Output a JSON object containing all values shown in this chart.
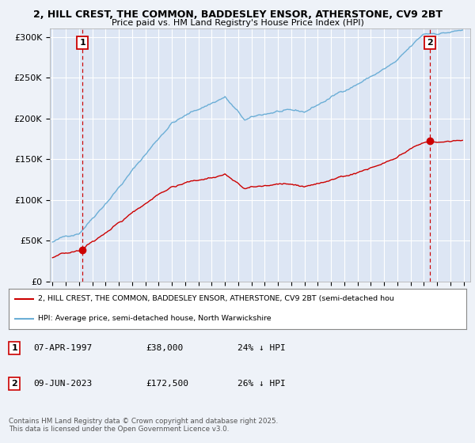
{
  "title_line1": "2, HILL CREST, THE COMMON, BADDESLEY ENSOR, ATHERSTONE, CV9 2BT",
  "title_line2": "Price paid vs. HM Land Registry's House Price Index (HPI)",
  "background_color": "#eef2f8",
  "plot_bg_color": "#dde6f4",
  "grid_color": "#ffffff",
  "hpi_color": "#6baed6",
  "price_color": "#cc0000",
  "hpi_color_fill": "#c5d8ef",
  "sale1_x": 1997.27,
  "sale1_y": 38000,
  "sale2_x": 2023.44,
  "sale2_y": 172500,
  "legend1_text": "2, HILL CREST, THE COMMON, BADDESLEY ENSOR, ATHERSTONE, CV9 2BT (semi-detached hou",
  "legend2_text": "HPI: Average price, semi-detached house, North Warwickshire",
  "footer": "Contains HM Land Registry data © Crown copyright and database right 2025.\nThis data is licensed under the Open Government Licence v3.0.",
  "ylim_max": 310000,
  "xlim_min": 1994.8,
  "xlim_max": 2026.5,
  "yticks": [
    0,
    50000,
    100000,
    150000,
    200000,
    250000,
    300000
  ],
  "ytick_labels": [
    "£0",
    "£50K",
    "£100K",
    "£150K",
    "£200K",
    "£250K",
    "£300K"
  ]
}
